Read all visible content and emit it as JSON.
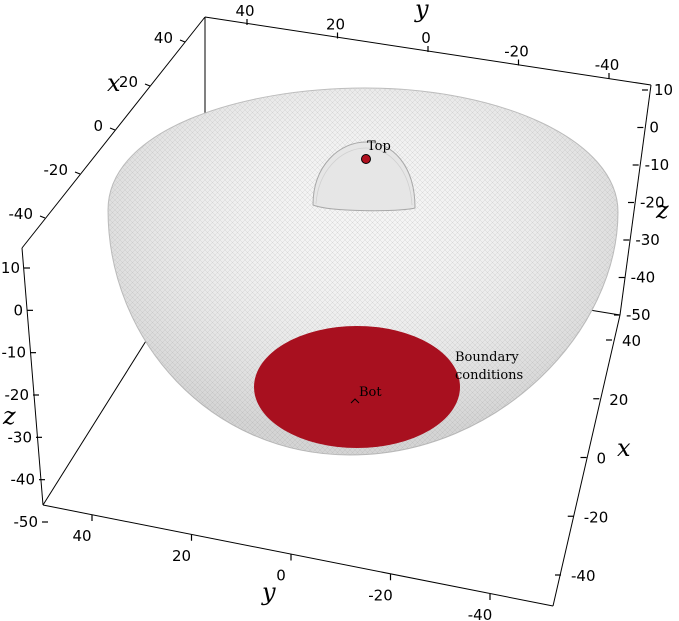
{
  "annotations": {
    "top": "Top",
    "bot": "Bot",
    "boundary_line1": "Boundary",
    "boundary_line2": "conditions"
  },
  "axes": {
    "x_label": "x",
    "y_label": "y",
    "z_label": "z",
    "top_y_ticks": [
      "40",
      "20",
      "0",
      "-20",
      "-40"
    ],
    "top_x_ticks": [
      "40",
      "20",
      "0",
      "-20",
      "-40"
    ],
    "right_z_ticks": [
      "10",
      "0",
      "-10",
      "-20",
      "-30",
      "-40",
      "-50"
    ],
    "right_x_ticks": [
      "40",
      "20",
      "0",
      "-20",
      "-40"
    ],
    "left_z_ticks": [
      "10",
      "0",
      "-10",
      "-20",
      "-30",
      "-40",
      "-50"
    ],
    "bottom_y_ticks": [
      "40",
      "20",
      "0",
      "-20",
      "-40"
    ]
  },
  "colors": {
    "boundary_fill": "#a8101f",
    "mesh": "#b8b8b8",
    "bowl_fill": "#f2f2f2"
  }
}
